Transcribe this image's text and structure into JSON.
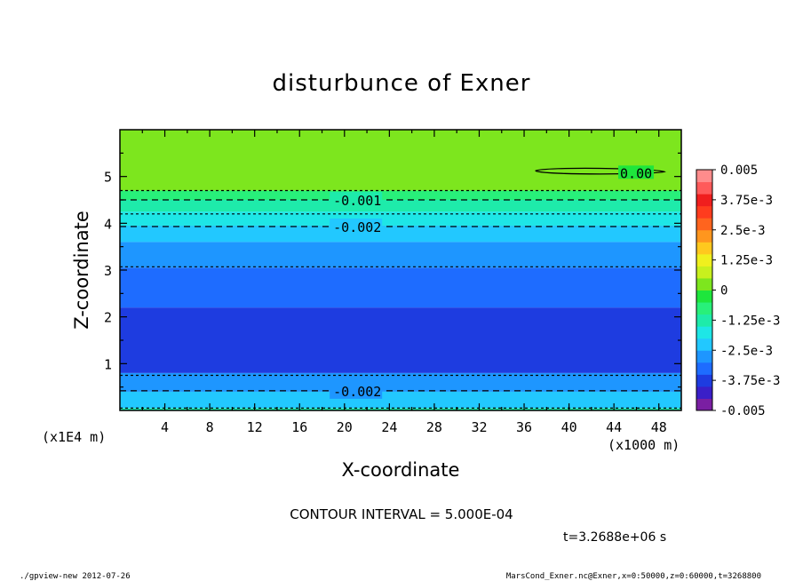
{
  "chart_data": {
    "type": "contour",
    "title": "disturbunce of Exner",
    "xlabel": "X-coordinate",
    "ylabel": "Z-coordinate",
    "x_unit": "(x1000 m)",
    "y_unit": "(x1E4 m)",
    "x_ticks": [
      4,
      8,
      12,
      16,
      20,
      24,
      28,
      32,
      36,
      40,
      44,
      48
    ],
    "y_ticks": [
      1,
      2,
      3,
      4,
      5
    ],
    "xlim": [
      0,
      50
    ],
    "ylim": [
      0,
      6
    ],
    "colorbar": {
      "labels": [
        "0.005",
        "3.75e-3",
        "2.5e-3",
        "1.25e-3",
        "0",
        "-1.25e-3",
        "-2.5e-3",
        "-3.75e-3",
        "-0.005"
      ],
      "range": [
        -0.005,
        0.005
      ],
      "colors": [
        "#7a1fa2",
        "#3a1fc8",
        "#1e3ce0",
        "#1e6cff",
        "#1e96ff",
        "#22c8ff",
        "#1ee6e6",
        "#1eebaa",
        "#28f07a",
        "#1ee63c",
        "#7de61e",
        "#c8f01e",
        "#f0f01e",
        "#ffc81e",
        "#ff961e",
        "#ff641e",
        "#ff3c1e",
        "#f01e1e",
        "#ff5a5a",
        "#ff8c8c"
      ]
    },
    "bands": [
      {
        "z_bottom": 0.0,
        "z_top": 0.05,
        "value": -0.0015
      },
      {
        "z_bottom": 0.05,
        "z_top": 0.4,
        "value": -0.0022
      },
      {
        "z_bottom": 0.4,
        "z_top": 0.8,
        "value": -0.0028
      },
      {
        "z_bottom": 0.8,
        "z_top": 2.2,
        "value": -0.0038
      },
      {
        "z_bottom": 2.2,
        "z_top": 3.05,
        "value": -0.0033
      },
      {
        "z_bottom": 3.05,
        "z_top": 3.6,
        "value": -0.0027
      },
      {
        "z_bottom": 3.6,
        "z_top": 3.95,
        "value": -0.0022
      },
      {
        "z_bottom": 3.95,
        "z_top": 4.25,
        "value": -0.0017
      },
      {
        "z_bottom": 4.25,
        "z_top": 4.5,
        "value": -0.0012
      },
      {
        "z_bottom": 4.5,
        "z_top": 4.7,
        "value": -0.0007
      },
      {
        "z_bottom": 4.7,
        "z_top": 6.0,
        "value": 0.0
      }
    ],
    "contours": [
      {
        "level": -0.0005,
        "z": 4.7,
        "label": "",
        "dashed": true
      },
      {
        "level": -0.001,
        "z": 4.5,
        "label": "-0.001",
        "label_x": 19,
        "dashed": true
      },
      {
        "level": -0.0015,
        "z": 4.2,
        "label": "",
        "dashed": true
      },
      {
        "level": -0.002,
        "z": 3.93,
        "label": "-0.002",
        "label_x": 19,
        "dashed": true
      },
      {
        "level": -0.0025,
        "z": 3.07,
        "label": "",
        "dashed": true
      },
      {
        "level": -0.003,
        "z": 0.75,
        "label": "",
        "dashed": true
      },
      {
        "level": -0.002,
        "z": 0.42,
        "label": "-0.002",
        "label_x": 19,
        "dashed": true
      },
      {
        "level": -0.0015,
        "z": 0.05,
        "label": "",
        "dashed": true
      }
    ],
    "zero_contour": {
      "label": "0.00",
      "x_range": [
        37,
        48.5
      ],
      "z": 5.12
    }
  },
  "footer": {
    "contour_interval": "CONTOUR INTERVAL = 5.000E-04",
    "time": "t=3.2688e+06 s",
    "program": "./gpview-new   2012-07-26",
    "source": "MarsCond_Exner.nc@Exner,x=0:50000,z=0:60000,t=3268800"
  }
}
